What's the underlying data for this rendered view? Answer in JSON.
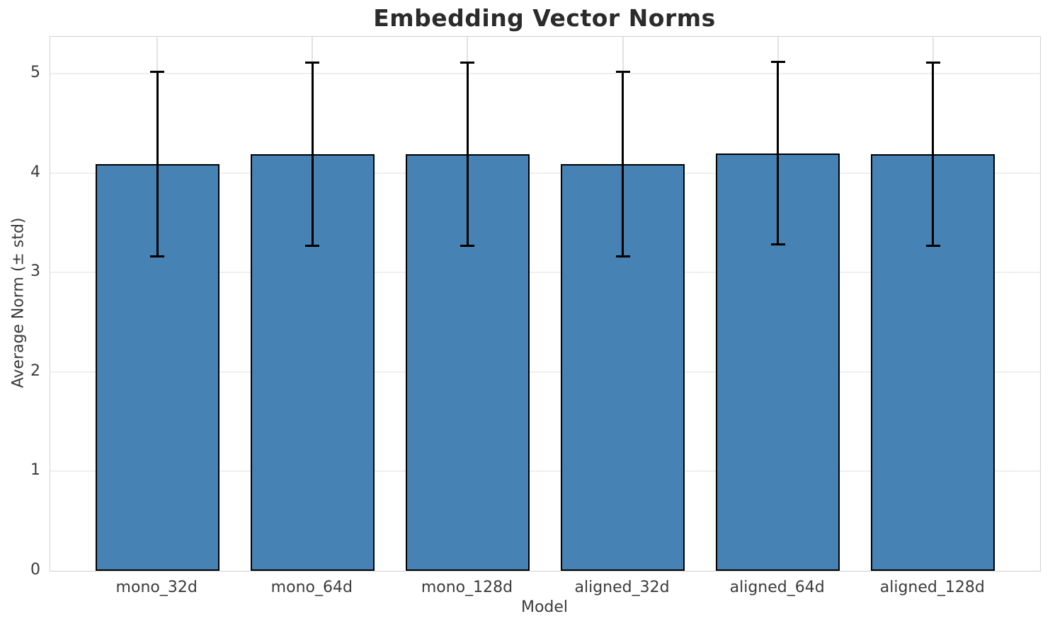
{
  "chart_data": {
    "type": "bar",
    "title": "Embedding Vector Norms",
    "xlabel": "Model",
    "ylabel": "Average Norm (± std)",
    "categories": [
      "mono_32d",
      "mono_64d",
      "mono_128d",
      "aligned_32d",
      "aligned_64d",
      "aligned_128d"
    ],
    "values": [
      4.09,
      4.19,
      4.19,
      4.09,
      4.2,
      4.19
    ],
    "errors": [
      0.93,
      0.92,
      0.92,
      0.93,
      0.92,
      0.92
    ],
    "yticks": [
      0,
      1,
      2,
      3,
      4,
      5
    ],
    "ylim": [
      0,
      5.37
    ],
    "grid": true,
    "legend": null,
    "colors": {
      "bar_fill": "#4682b4",
      "bar_edge": "#000000",
      "error_bar": "#000000",
      "h_grid": "#efefef",
      "v_grid": "#e2e2e2",
      "spine": "#d0d0d0",
      "title_text": "#2b2b2b",
      "tick_text": "#3b3b3b"
    }
  }
}
